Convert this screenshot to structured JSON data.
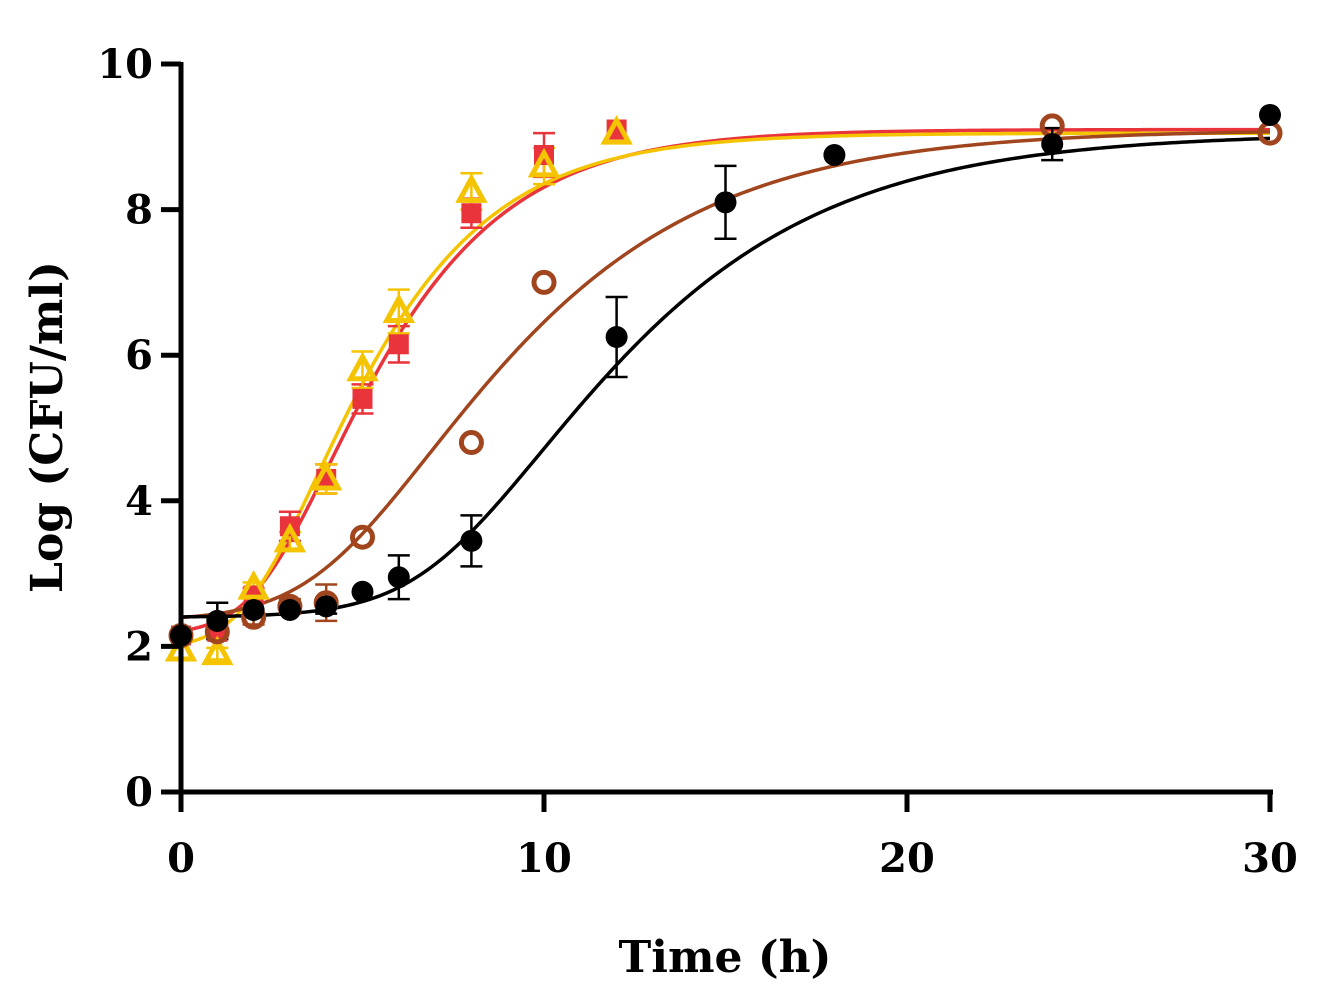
{
  "chart_data": {
    "type": "scatter",
    "title": "",
    "xlabel": "Time (h)",
    "ylabel": "Log (CFU/ml)",
    "xlim": [
      0,
      30
    ],
    "ylim": [
      0,
      10
    ],
    "xticks": [
      0,
      10,
      20,
      30
    ],
    "yticks": [
      0,
      2,
      4,
      6,
      8,
      10
    ],
    "grid": false,
    "legend": "none",
    "series": [
      {
        "name": "red",
        "color": "#e8343a",
        "marker": "square",
        "points": [
          {
            "x": 0,
            "y": 2.15,
            "err": 0.05
          },
          {
            "x": 1,
            "y": 2.2,
            "err": 0.1
          },
          {
            "x": 2,
            "y": 2.7,
            "err": 0.1
          },
          {
            "x": 3,
            "y": 3.65,
            "err": 0.2
          },
          {
            "x": 4,
            "y": 4.3,
            "err": 0.2
          },
          {
            "x": 5,
            "y": 5.4,
            "err": 0.2
          },
          {
            "x": 6,
            "y": 6.15,
            "err": 0.25
          },
          {
            "x": 8,
            "y": 7.95,
            "err": 0.2
          },
          {
            "x": 10,
            "y": 8.75,
            "err": 0.3
          },
          {
            "x": 12,
            "y": 9.1,
            "err": 0.05
          }
        ],
        "fit": {
          "y0": 2.15,
          "ymax": 9.1,
          "mu": 1.25,
          "lag": 2.2
        }
      },
      {
        "name": "yellow",
        "color": "#f5c400",
        "marker": "triangle-open",
        "points": [
          {
            "x": 0,
            "y": 1.95,
            "err": 0.05
          },
          {
            "x": 1,
            "y": 1.9,
            "err": 0.08
          },
          {
            "x": 2,
            "y": 2.8,
            "err": 0.08
          },
          {
            "x": 3,
            "y": 3.45,
            "err": 0.12
          },
          {
            "x": 4,
            "y": 4.3,
            "err": 0.2
          },
          {
            "x": 5,
            "y": 5.8,
            "err": 0.25
          },
          {
            "x": 6,
            "y": 6.6,
            "err": 0.3
          },
          {
            "x": 8,
            "y": 8.25,
            "err": 0.25
          },
          {
            "x": 10,
            "y": 8.6,
            "err": 0.25
          },
          {
            "x": 12,
            "y": 9.05,
            "err": 0.05
          }
        ],
        "fit": {
          "y0": 1.95,
          "ymax": 9.05,
          "mu": 1.3,
          "lag": 1.9
        }
      },
      {
        "name": "brown",
        "color": "#a0451d",
        "marker": "circle-open",
        "points": [
          {
            "x": 0,
            "y": 2.15,
            "err": 0.05
          },
          {
            "x": 1,
            "y": 2.2,
            "err": 0.05
          },
          {
            "x": 2,
            "y": 2.4,
            "err": 0.1
          },
          {
            "x": 3,
            "y": 2.55,
            "err": 0.1
          },
          {
            "x": 4,
            "y": 2.6,
            "err": 0.25
          },
          {
            "x": 5,
            "y": 3.5,
            "err": 0.05
          },
          {
            "x": 8,
            "y": 4.8,
            "err": 0.05
          },
          {
            "x": 10,
            "y": 7.0,
            "err": 0.05
          },
          {
            "x": 24,
            "y": 9.15,
            "err": 0.05
          },
          {
            "x": 30,
            "y": 9.05,
            "err": 0.05
          }
        ],
        "fit": {
          "y0": 2.35,
          "ymax": 9.1,
          "mu": 0.78,
          "lag": 3.9
        }
      },
      {
        "name": "black",
        "color": "#000000",
        "marker": "circle-filled",
        "points": [
          {
            "x": 0,
            "y": 2.15,
            "err": 0.05
          },
          {
            "x": 1,
            "y": 2.35,
            "err": 0.25
          },
          {
            "x": 2,
            "y": 2.5,
            "err": 0.05
          },
          {
            "x": 3,
            "y": 2.5,
            "err": 0.05
          },
          {
            "x": 4,
            "y": 2.55,
            "err": 0.1
          },
          {
            "x": 5,
            "y": 2.75,
            "err": 0.05
          },
          {
            "x": 6,
            "y": 2.95,
            "err": 0.3
          },
          {
            "x": 8,
            "y": 3.45,
            "err": 0.35
          },
          {
            "x": 12,
            "y": 6.25,
            "err": 0.55
          },
          {
            "x": 15,
            "y": 8.1,
            "err": 0.5
          },
          {
            "x": 18,
            "y": 8.75,
            "err": 0.05
          },
          {
            "x": 24,
            "y": 8.9,
            "err": 0.22
          },
          {
            "x": 30,
            "y": 9.3,
            "err": 0.05
          }
        ],
        "fit": {
          "y0": 2.4,
          "ymax": 9.05,
          "mu": 0.75,
          "lag": 6.9
        }
      }
    ]
  }
}
